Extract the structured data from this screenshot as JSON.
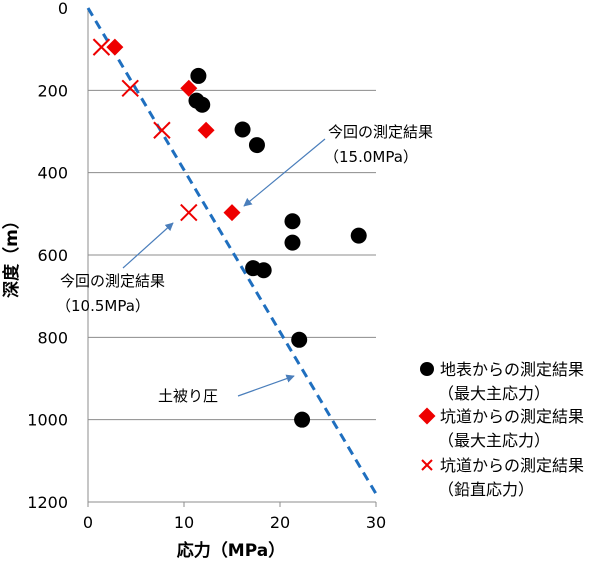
{
  "chart_data": {
    "type": "scatter",
    "xlabel": "応力（MPa）",
    "ylabel": "深度（m）",
    "xlim": [
      0,
      30
    ],
    "ylim": [
      0,
      1200
    ],
    "y_inverted": true,
    "x_ticks": [
      "0",
      "10",
      "20",
      "30"
    ],
    "y_ticks": [
      "0",
      "200",
      "400",
      "600",
      "800",
      "1000",
      "1200"
    ],
    "grid": "horizontal",
    "legend_position": "right",
    "series": [
      {
        "name": "地表からの測定結果（最大主応力）",
        "legend_line1": "地表からの測定結果",
        "legend_line2": "（最大主応力）",
        "marker": "circle",
        "color": "#000000",
        "points": [
          {
            "x": 11.5,
            "y": 165
          },
          {
            "x": 11.3,
            "y": 225
          },
          {
            "x": 11.9,
            "y": 235
          },
          {
            "x": 16.1,
            "y": 295
          },
          {
            "x": 17.6,
            "y": 333
          },
          {
            "x": 21.3,
            "y": 518
          },
          {
            "x": 21.3,
            "y": 570
          },
          {
            "x": 28.2,
            "y": 553
          },
          {
            "x": 17.2,
            "y": 632
          },
          {
            "x": 18.3,
            "y": 637
          },
          {
            "x": 22.0,
            "y": 806
          },
          {
            "x": 22.3,
            "y": 1000
          }
        ]
      },
      {
        "name": "坑道からの測定結果（最大主応力）",
        "legend_line1": "坑道からの測定結果",
        "legend_line2": "（最大主応力）",
        "marker": "diamond",
        "color": "#ee0000",
        "points": [
          {
            "x": 2.8,
            "y": 95
          },
          {
            "x": 10.5,
            "y": 195
          },
          {
            "x": 12.3,
            "y": 297
          },
          {
            "x": 15.0,
            "y": 497
          }
        ]
      },
      {
        "name": "坑道からの測定結果（鉛直応力）",
        "legend_line1": "坑道からの測定結果",
        "legend_line2": "（鉛直応力）",
        "marker": "x",
        "color": "#ee0000",
        "points": [
          {
            "x": 1.4,
            "y": 95
          },
          {
            "x": 4.4,
            "y": 195
          },
          {
            "x": 7.7,
            "y": 297
          },
          {
            "x": 10.5,
            "y": 497
          }
        ]
      }
    ],
    "line": {
      "name": "土被り圧",
      "style": "dashed",
      "color": "#1f6fbf",
      "points": [
        {
          "x": 0,
          "y": 0
        },
        {
          "x": 30,
          "y": 1180
        }
      ]
    },
    "annotations": [
      {
        "line1": "今回の測定結果",
        "line2": "（15.0MPa）"
      },
      {
        "line1": "今回の測定結果",
        "line2": "（10.5MPa）"
      },
      {
        "line1": "土被り圧",
        "line2": ""
      }
    ]
  }
}
